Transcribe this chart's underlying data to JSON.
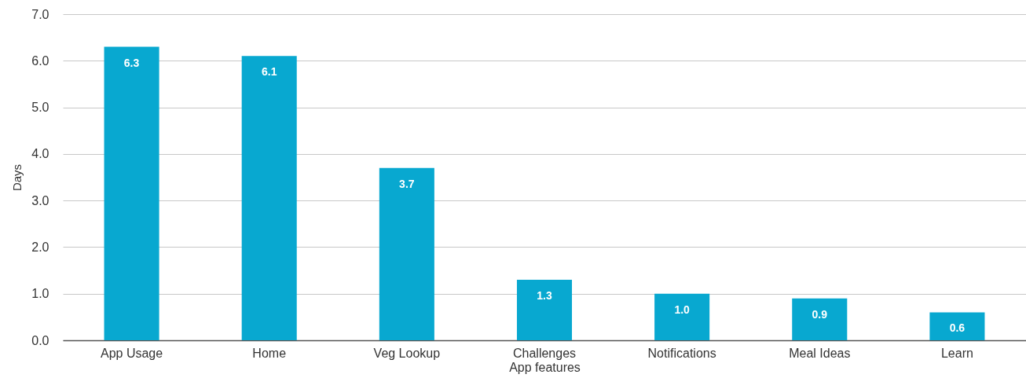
{
  "chart_data": {
    "type": "bar",
    "xlabel": "App features",
    "ylabel": "Days",
    "categories": [
      "App Usage",
      "Home",
      "Veg Lookup",
      "Challenges",
      "Notifications",
      "Meal Ideas",
      "Learn"
    ],
    "values": [
      6.3,
      6.1,
      3.7,
      1.3,
      1.0,
      0.9,
      0.6
    ],
    "value_labels": [
      "6.3",
      "6.1",
      "3.7",
      "1.3",
      "1.0",
      "0.9",
      "0.6"
    ],
    "color": "#08a8d0",
    "ylim": [
      0,
      7
    ],
    "yticks": [
      {
        "value": 0,
        "label": "0.0"
      },
      {
        "value": 1,
        "label": "1.0"
      },
      {
        "value": 2,
        "label": "2.0"
      },
      {
        "value": 3,
        "label": "3.0"
      },
      {
        "value": 4,
        "label": "4.0"
      },
      {
        "value": 5,
        "label": "5.0"
      },
      {
        "value": 6,
        "label": "6.0"
      },
      {
        "value": 7,
        "label": "7.0"
      }
    ],
    "grid": "y"
  }
}
